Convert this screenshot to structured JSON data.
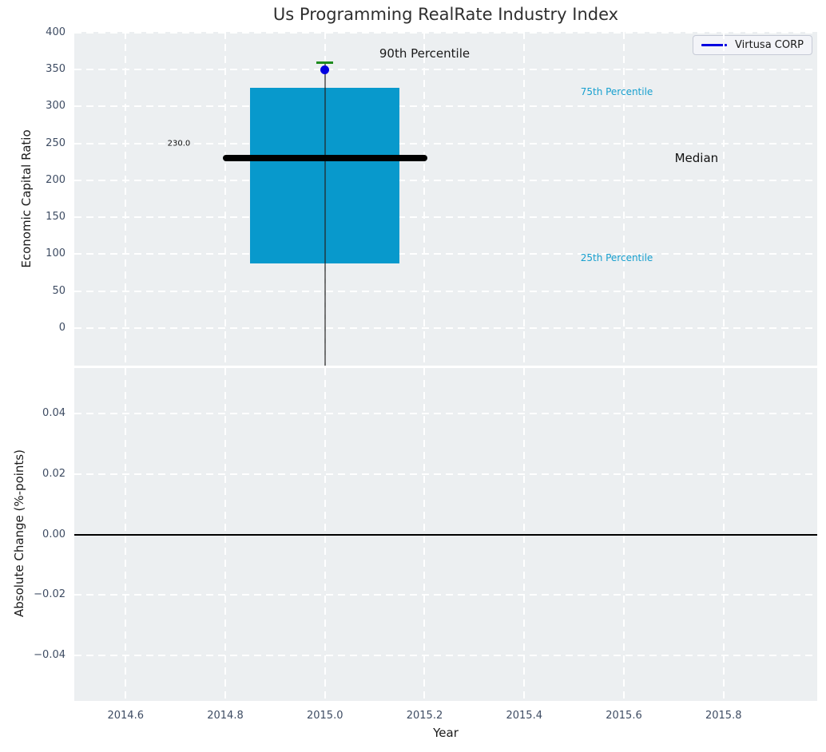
{
  "figure": {
    "background": "#ffffff",
    "axes_background": "#eceff1",
    "grid_color": "#ffffff",
    "tick_color": "#3e4c63"
  },
  "chart_data": {
    "type": "boxplot",
    "title": "Us Programming RealRate Industry Index",
    "x": {
      "label": "Year",
      "tick_values": [
        2014.6,
        2014.8,
        2015.0,
        2015.2,
        2015.4,
        2015.6,
        2015.8
      ],
      "tick_labels": [
        "2014.6",
        "2014.8",
        "2015.0",
        "2015.2",
        "2015.4",
        "2015.6",
        "2015.8"
      ],
      "xlim": [
        2014.497,
        2015.988
      ]
    },
    "top_panel": {
      "ylabel": "Economic Capital Ratio",
      "ytick_values": [
        0,
        50,
        100,
        150,
        200,
        250,
        300,
        350,
        400
      ],
      "ytick_labels": [
        "0",
        "50",
        "100",
        "150",
        "200",
        "250",
        "300",
        "350",
        "400"
      ],
      "ylim": [
        -51,
        401
      ],
      "grid": true,
      "box": {
        "x": 2015.0,
        "p25": 87,
        "median": 230,
        "p75": 325,
        "p90": 360,
        "company_point": 350,
        "whisker_low_clipped_at_axis_bottom": true,
        "box_color": "#0899cc",
        "median_color": "#000000",
        "cap_color": "#1e8c1e",
        "point_color": "#0000e0",
        "box_halfwidth": 0.15,
        "median_halfwidth": 0.205,
        "cap_halfwidth": 0.017
      },
      "annotations": [
        {
          "id": "median-value",
          "text": "230.0",
          "x": 2014.707,
          "y": 250,
          "color": "#111111",
          "size": 10,
          "align": "center"
        },
        {
          "id": "p90",
          "text": "90th Percentile",
          "x": 2015.2,
          "y": 372,
          "color": "#1a1a1a",
          "size": 15,
          "align": "center"
        },
        {
          "id": "p75",
          "text": "75th Percentile",
          "x": 2015.513,
          "y": 320,
          "color": "#18a0cf",
          "size": 12,
          "align": "left"
        },
        {
          "id": "median",
          "text": "Median",
          "x": 2015.702,
          "y": 230,
          "color": "#111111",
          "size": 15,
          "align": "left"
        },
        {
          "id": "p25",
          "text": "25th Percentile",
          "x": 2015.513,
          "y": 95,
          "color": "#18a0cf",
          "size": 12,
          "align": "left"
        }
      ],
      "legend": {
        "label": "Virtusa CORP",
        "line_color": "#0000e0",
        "position": "upper right"
      }
    },
    "bottom_panel": {
      "ylabel": "Absolute Change (%-points)",
      "ytick_values": [
        -0.04,
        -0.02,
        0,
        0.02,
        0.04
      ],
      "ytick_labels": [
        "−0.04",
        "−0.02",
        "0.00",
        "0.02",
        "0.04"
      ],
      "ylim": [
        -0.055,
        0.055
      ],
      "grid": true,
      "zero_line": {
        "y": 0,
        "color": "#000000"
      }
    }
  }
}
